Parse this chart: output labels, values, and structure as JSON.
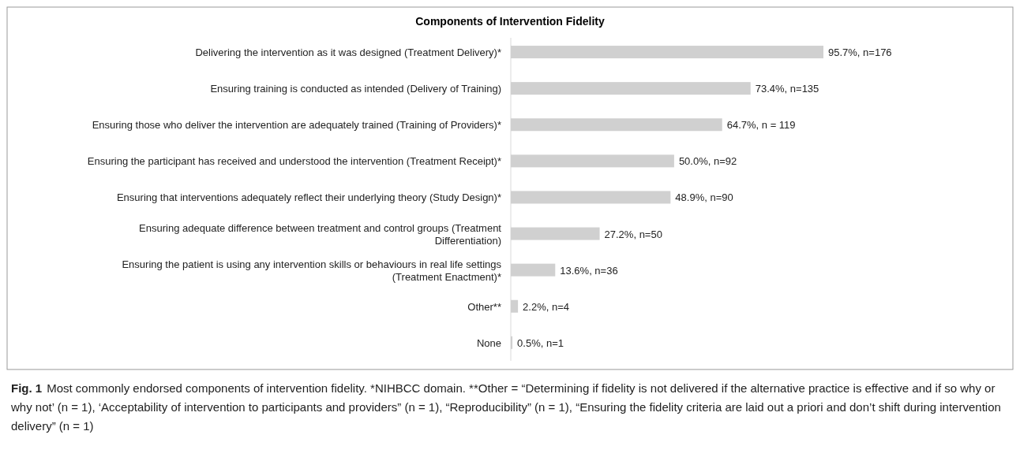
{
  "chart_data": {
    "type": "bar",
    "orientation": "horizontal",
    "title": "Components of Intervention Fidelity",
    "categories": [
      "Delivering the intervention as it was designed (Treatment Delivery)*",
      "Ensuring training is conducted as intended (Delivery of Training)",
      "Ensuring those who deliver the intervention are adequately trained (Training of Providers)*",
      "Ensuring the participant has received and understood the intervention (Treatment Receipt)*",
      "Ensuring that interventions adequately reflect their underlying theory (Study Design)*",
      "Ensuring adequate difference between treatment and control groups (Treatment Differentiation)",
      "Ensuring the patient is using any intervention skills or behaviours in real life settings (Treatment Enactment)*",
      "Other**",
      "None"
    ],
    "values": [
      95.7,
      73.4,
      64.7,
      50.0,
      48.9,
      27.2,
      13.6,
      2.2,
      0.5
    ],
    "value_labels": [
      "95.7%, n=176",
      "73.4%, n=135",
      "64.7%, n = 119",
      "50.0%, n=92",
      "48.9%, n=90",
      "27.2%, n=50",
      "13.6%, n=36",
      "2.2%, n=4",
      "0.5%, n=1"
    ],
    "color": "#d0d0d0",
    "annotations": [
      "Fig. 1",
      "Most commonly endorsed components of intervention fidelity. *NIHBCC domain. **Other = “Determining if fidelity is not delivered if the alternative practice is effective and if so why or why not’ (n = 1), ‘Acceptability of intervention to participants and providers” (n = 1), “Reproducibility” (n = 1), “Ensuring the fidelity criteria are laid out a priori and don’t shift during intervention delivery” (n = 1)"
    ]
  }
}
